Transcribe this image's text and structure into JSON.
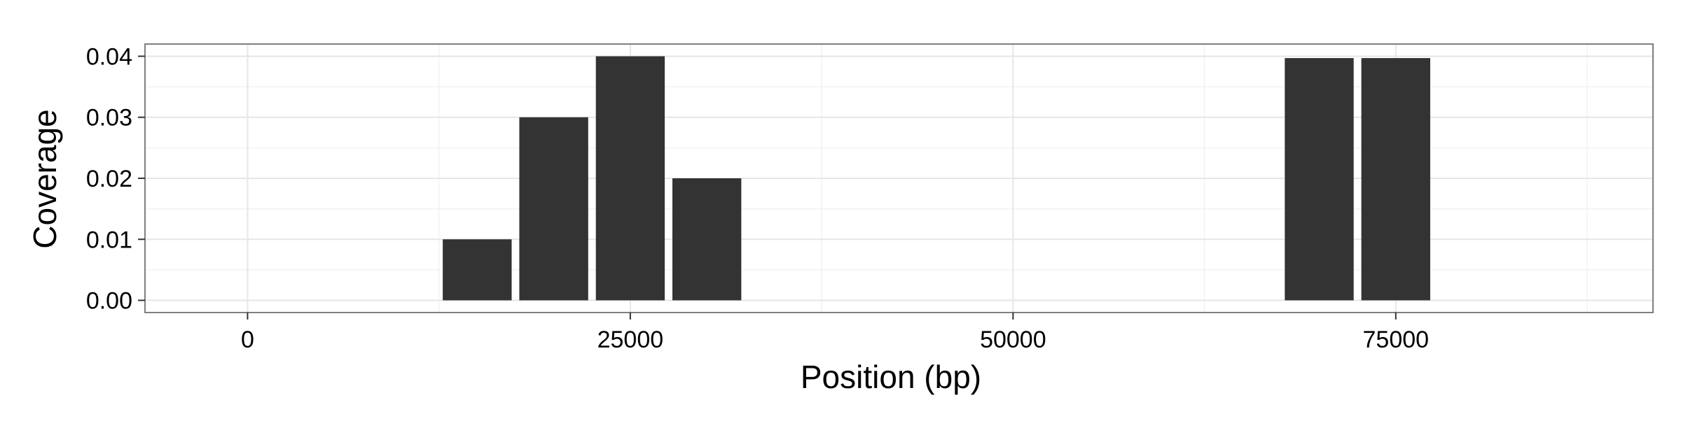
{
  "chart_data": {
    "type": "bar",
    "title": "",
    "xlabel": "Position (bp)",
    "ylabel": "Coverage",
    "x_centers": [
      15000,
      20000,
      25000,
      30000,
      70000,
      75000
    ],
    "bar_width": 4500,
    "values": [
      0.01,
      0.03,
      0.04,
      0.02,
      0.0397,
      0.0397
    ],
    "xlim": [
      -6700,
      91800
    ],
    "ylim": [
      -0.002,
      0.042
    ],
    "x_ticks": [
      0,
      25000,
      50000,
      75000
    ],
    "x_tick_labels": [
      "0",
      "25000",
      "50000",
      "75000"
    ],
    "y_ticks": [
      0,
      0.01,
      0.02,
      0.03,
      0.04
    ],
    "y_tick_labels": [
      "0.00",
      "0.01",
      "0.02",
      "0.03",
      "0.04"
    ],
    "grid": true,
    "legend": "none",
    "colors": {
      "bar": "#333333",
      "panel_border": "#7f7f7f",
      "grid_major": "#e6e6e6",
      "grid_minor": "#f2f2f2"
    }
  }
}
